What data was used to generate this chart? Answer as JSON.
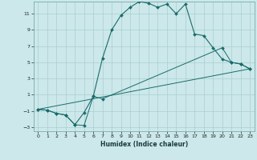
{
  "xlabel": "Humidex (Indice chaleur)",
  "background_color": "#cce8ea",
  "grid_color": "#aacece",
  "line_color": "#1a6b6b",
  "xlim": [
    -0.5,
    23.5
  ],
  "ylim": [
    -3.5,
    12.5
  ],
  "xticks": [
    0,
    1,
    2,
    3,
    4,
    5,
    6,
    7,
    8,
    9,
    10,
    11,
    12,
    13,
    14,
    15,
    16,
    17,
    18,
    19,
    20,
    21,
    22,
    23
  ],
  "yticks": [
    -3,
    -1,
    1,
    3,
    5,
    7,
    9,
    11
  ],
  "line1_x": [
    0,
    1,
    2,
    3,
    4,
    5,
    6,
    7,
    8,
    9,
    10,
    11,
    12,
    13,
    14,
    15,
    16,
    17,
    18,
    19,
    20,
    21,
    22,
    23
  ],
  "line1_y": [
    -0.8,
    -0.9,
    -1.3,
    -1.5,
    -2.7,
    -1.2,
    0.8,
    5.5,
    9.0,
    10.8,
    11.8,
    12.5,
    12.3,
    11.8,
    12.2,
    11.0,
    12.2,
    8.5,
    8.3,
    6.8,
    5.4,
    5.0,
    4.8,
    4.2
  ],
  "line2_x": [
    0,
    1,
    2,
    3,
    4,
    5,
    6,
    7,
    20,
    21,
    22,
    23
  ],
  "line2_y": [
    -0.8,
    -0.9,
    -1.3,
    -1.5,
    -2.7,
    -2.8,
    0.8,
    0.5,
    6.8,
    5.0,
    4.8,
    4.2
  ],
  "line3_x": [
    0,
    23
  ],
  "line3_y": [
    -0.8,
    4.2
  ]
}
